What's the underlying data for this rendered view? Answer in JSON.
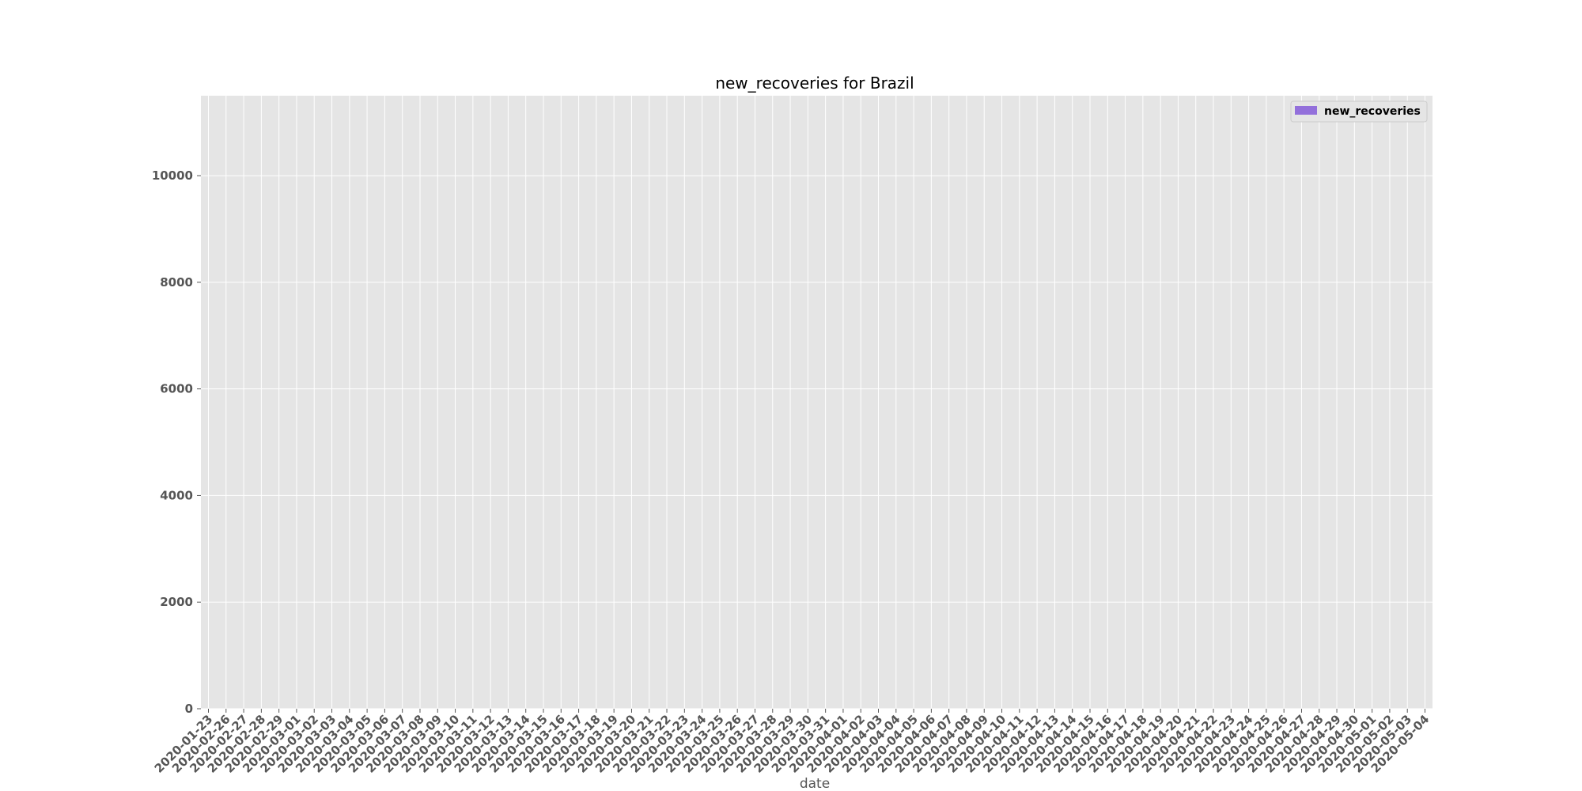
{
  "chart_data": {
    "type": "bar",
    "title": "new_recoveries for Brazil",
    "xlabel": "date",
    "ylabel": "",
    "ylim": [
      0,
      11500
    ],
    "yticks": [
      0,
      2000,
      4000,
      6000,
      8000,
      10000
    ],
    "grid": true,
    "legend_position": "top-right",
    "colors": {
      "bar": "#9370DB",
      "plot_bg": "#E5E5E5",
      "grid": "#FFFFFF",
      "tick_text": "#555555"
    },
    "categories": [
      "2020-01-23",
      "2020-02-26",
      "2020-02-27",
      "2020-02-28",
      "2020-02-29",
      "2020-03-01",
      "2020-03-02",
      "2020-03-03",
      "2020-03-04",
      "2020-03-05",
      "2020-03-06",
      "2020-03-07",
      "2020-03-08",
      "2020-03-09",
      "2020-03-10",
      "2020-03-11",
      "2020-03-12",
      "2020-03-13",
      "2020-03-14",
      "2020-03-15",
      "2020-03-16",
      "2020-03-17",
      "2020-03-18",
      "2020-03-19",
      "2020-03-20",
      "2020-03-21",
      "2020-03-22",
      "2020-03-23",
      "2020-03-24",
      "2020-03-25",
      "2020-03-26",
      "2020-03-27",
      "2020-03-28",
      "2020-03-29",
      "2020-03-30",
      "2020-03-31",
      "2020-04-01",
      "2020-04-02",
      "2020-04-03",
      "2020-04-04",
      "2020-04-05",
      "2020-04-06",
      "2020-04-07",
      "2020-04-08",
      "2020-04-09",
      "2020-04-10",
      "2020-04-11",
      "2020-04-12",
      "2020-04-13",
      "2020-04-14",
      "2020-04-15",
      "2020-04-16",
      "2020-04-17",
      "2020-04-18",
      "2020-04-19",
      "2020-04-20",
      "2020-04-21",
      "2020-04-22",
      "2020-04-23",
      "2020-04-24",
      "2020-04-25",
      "2020-04-26",
      "2020-04-27",
      "2020-04-28",
      "2020-04-29",
      "2020-04-30",
      "2020-05-01",
      "2020-05-02",
      "2020-05-03",
      "2020-05-04"
    ],
    "series": [
      {
        "name": "new_recoveries",
        "values": [
          0,
          0,
          0,
          0,
          0,
          0,
          0,
          0,
          0,
          0,
          0,
          0,
          0,
          0,
          0,
          0,
          0,
          0,
          0,
          0,
          0,
          0,
          0,
          0,
          0,
          0,
          0,
          0,
          0,
          0,
          0,
          0,
          0,
          0,
          0,
          0,
          0,
          0,
          0,
          0,
          0,
          0,
          0,
          0,
          0,
          0,
          0,
          0,
          0,
          0,
          0,
          0,
          0,
          0,
          0,
          0,
          0,
          0,
          0,
          0,
          0,
          0,
          0,
          0,
          0,
          0,
          0,
          0,
          0,
          0
        ]
      }
    ]
  }
}
